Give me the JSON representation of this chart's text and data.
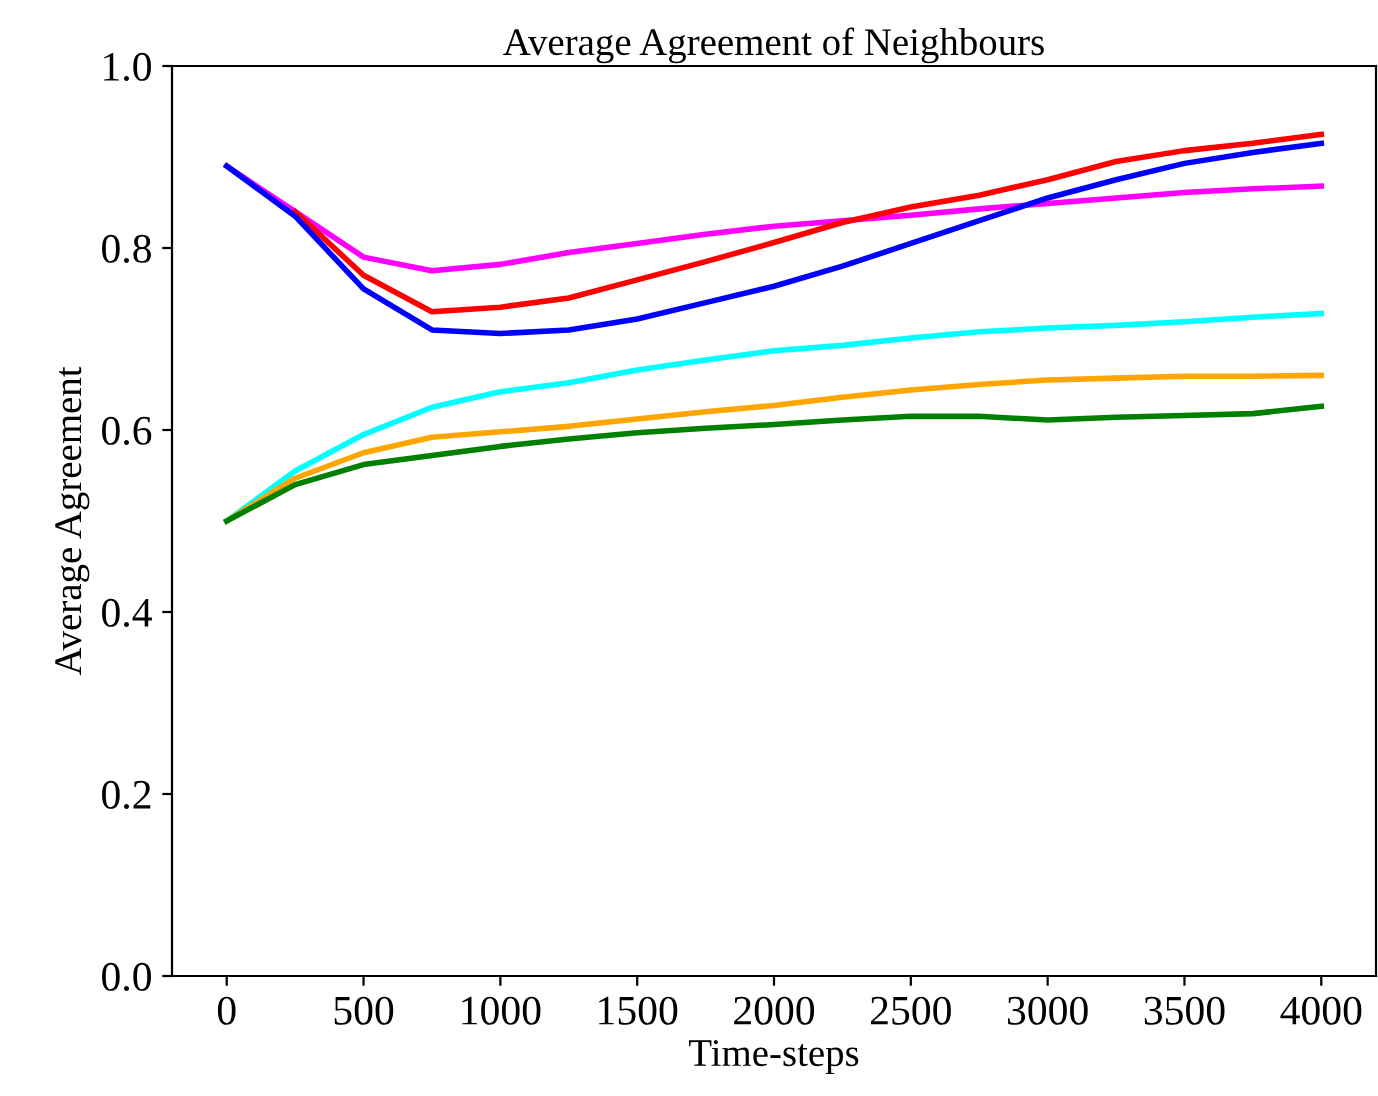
{
  "chart_data": {
    "type": "line",
    "title": "Average Agreement of Neighbours",
    "xlabel": "Time-steps",
    "ylabel": "Average Agreement",
    "x": [
      0,
      250,
      500,
      750,
      1000,
      1250,
      1500,
      1750,
      2000,
      2250,
      2500,
      2750,
      3000,
      3250,
      3500,
      3750,
      4000
    ],
    "series": [
      {
        "color": "#ff00ff",
        "values": [
          0.89,
          0.84,
          0.79,
          0.775,
          0.782,
          0.795,
          0.805,
          0.815,
          0.824,
          0.83,
          0.836,
          0.843,
          0.849,
          0.855,
          0.861,
          0.865,
          0.868
        ]
      },
      {
        "color": "#ff0000",
        "values": [
          null,
          0.84,
          0.77,
          0.73,
          0.735,
          0.745,
          0.765,
          0.785,
          0.806,
          0.828,
          0.845,
          0.858,
          0.875,
          0.895,
          0.907,
          0.915,
          0.925
        ]
      },
      {
        "color": "#0000ff",
        "values": [
          0.89,
          0.835,
          0.755,
          0.71,
          0.706,
          0.71,
          0.722,
          0.74,
          0.758,
          0.78,
          0.805,
          0.83,
          0.855,
          0.875,
          0.893,
          0.905,
          0.915
        ]
      },
      {
        "color": "#00ffff",
        "values": [
          0.5,
          0.555,
          0.595,
          0.625,
          0.642,
          0.652,
          0.666,
          0.677,
          0.687,
          0.693,
          0.701,
          0.708,
          0.712,
          0.715,
          0.719,
          0.724,
          0.728
        ]
      },
      {
        "color": "#ffa500",
        "values": [
          0.5,
          0.547,
          0.575,
          0.592,
          0.598,
          0.604,
          0.612,
          0.62,
          0.627,
          0.636,
          0.644,
          0.65,
          0.655,
          0.657,
          0.659,
          0.659,
          0.66
        ]
      },
      {
        "color": "#008000",
        "values": [
          0.5,
          0.54,
          0.562,
          0.572,
          0.582,
          0.59,
          0.597,
          0.602,
          0.606,
          0.611,
          0.615,
          0.615,
          0.611,
          0.614,
          0.616,
          0.618,
          0.626
        ]
      }
    ],
    "xlim": [
      -200,
      4200
    ],
    "xticks": [
      0,
      500,
      1000,
      1500,
      2000,
      2500,
      3000,
      3500,
      4000
    ],
    "ylim": [
      0.0,
      1.0
    ],
    "yticks": [
      {
        "value": 0.0,
        "label": "0.0"
      },
      {
        "value": 0.2,
        "label": "0.2"
      },
      {
        "value": 0.4,
        "label": "0.4"
      },
      {
        "value": 0.6,
        "label": "0.6"
      },
      {
        "value": 0.8,
        "label": "0.8"
      },
      {
        "value": 1.0,
        "label": "1.0"
      }
    ],
    "grid": false,
    "legend": false
  }
}
